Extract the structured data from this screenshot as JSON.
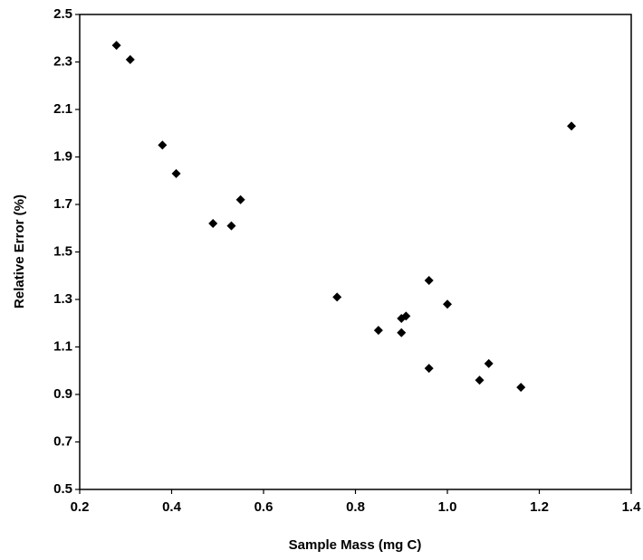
{
  "chart_data": {
    "type": "scatter",
    "x_label": "Sample Mass (mg C)",
    "y_label": "Relative Error (%)",
    "x": [
      0.28,
      0.31,
      0.38,
      0.41,
      0.49,
      0.53,
      0.55,
      0.76,
      0.85,
      0.9,
      0.91,
      0.9,
      0.96,
      0.96,
      1.0,
      1.07,
      1.09,
      1.16,
      1.27
    ],
    "values": [
      2.37,
      2.31,
      1.95,
      1.83,
      1.62,
      1.61,
      1.72,
      1.31,
      1.17,
      1.22,
      1.23,
      1.16,
      1.38,
      1.01,
      1.28,
      0.96,
      1.03,
      0.93,
      2.03
    ],
    "color": "#000000",
    "xlim": [
      0.2,
      1.4
    ],
    "xticks": [
      0.2,
      0.4,
      0.6,
      0.8,
      {
        "value": 1,
        "label": "1.0"
      },
      1.2,
      1.4
    ],
    "ylim": [
      0.5,
      2.5
    ],
    "yticks": [
      0.5,
      0.7,
      0.9,
      1.1,
      1.3,
      1.5,
      1.7,
      1.9,
      2.1,
      2.3,
      2.5
    ],
    "grid": false
  }
}
